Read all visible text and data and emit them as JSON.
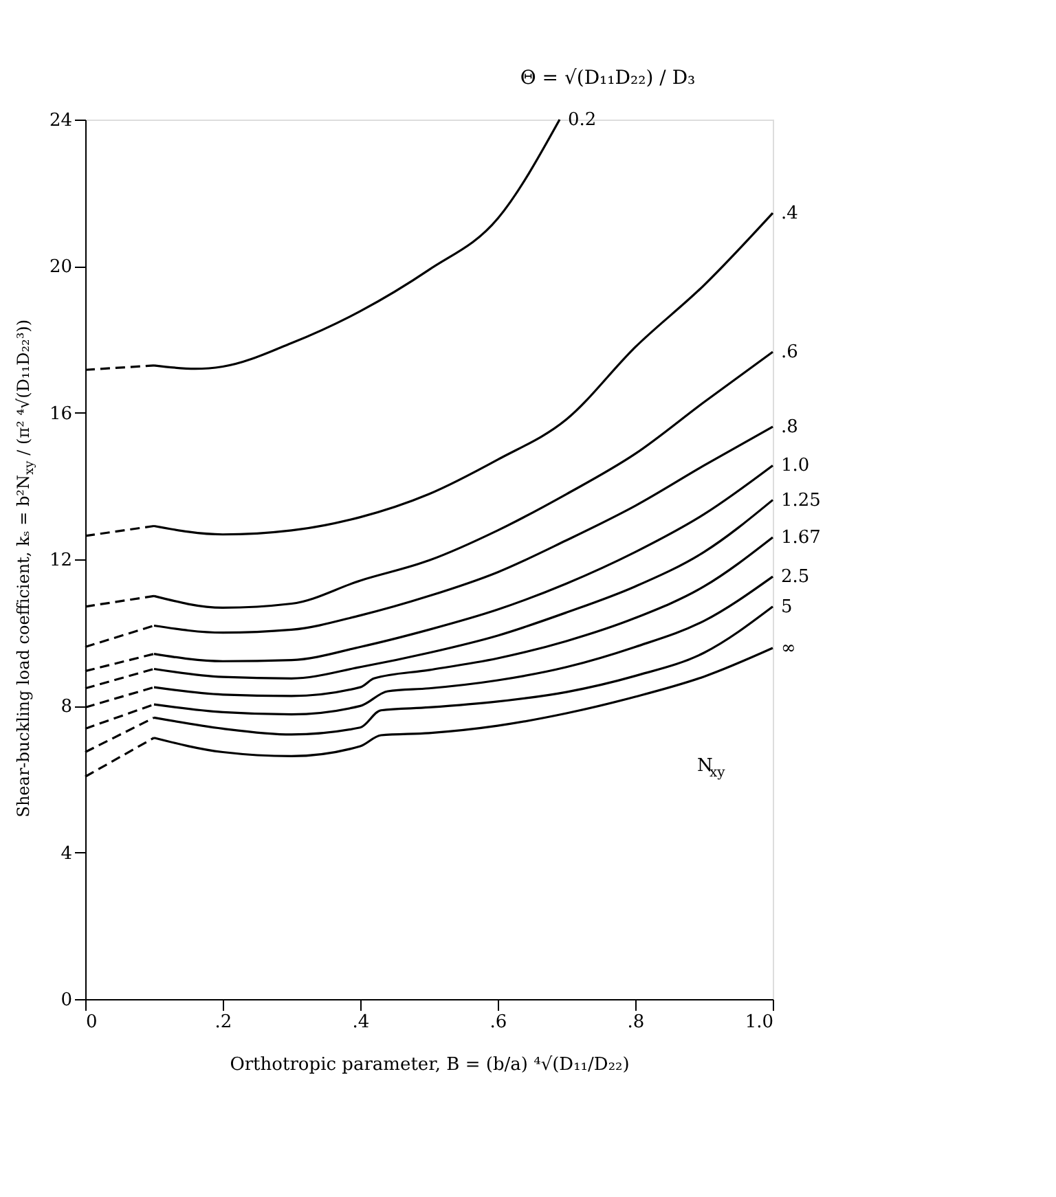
{
  "chart_data": {
    "type": "line",
    "xlabel": "Orthotropic parameter, B = (b/a) ⁴√(D₁₁/D₂₂)",
    "ylabel": "Shear-buckling load coefficient, kₛ = b²N$_{xy}$ / (π² ⁴√(D₁₁D₂₂³))",
    "legend_title": "Θ = √(D₁₁D₂₂) / D₃",
    "annotations": [
      "N$_{xy}$"
    ],
    "xlim": [
      0,
      1.0
    ],
    "ylim": [
      0,
      24
    ],
    "xticks": [
      0,
      {
        "value": 0.2,
        "label": ".2"
      },
      {
        "value": 0.4,
        "label": ".4"
      },
      {
        "value": 0.6,
        "label": ".6"
      },
      {
        "value": 0.8,
        "label": ".8"
      },
      {
        "value": 1.0,
        "label": "1.0"
      }
    ],
    "yticks": [
      0,
      4,
      8,
      12,
      16,
      20,
      24
    ],
    "grid": false,
    "marker": "none",
    "series": [
      {
        "color": "#000000",
        "line_style": "dashed",
        "x": [
          0,
          0.1
        ],
        "values": [
          17.17,
          17.29
        ]
      },
      {
        "name": "0.2",
        "color": "#000000",
        "line_style": "solid",
        "x": [
          0.1,
          0.16,
          0.2,
          0.3,
          0.4,
          0.5,
          0.6,
          0.69
        ],
        "values": [
          17.29,
          17.2,
          17.26,
          17.9,
          18.77,
          19.9,
          21.3,
          24
        ]
      },
      {
        "color": "#000000",
        "line_style": "dashed",
        "x": [
          0,
          0.1
        ],
        "values": [
          12.64,
          12.91
        ]
      },
      {
        "name": ".4",
        "color": "#000000",
        "line_style": "solid",
        "x": [
          0.1,
          0.2,
          0.3,
          0.4,
          0.5,
          0.6,
          0.7,
          0.8,
          0.9,
          1.0
        ],
        "values": [
          12.91,
          12.68,
          12.79,
          13.15,
          13.78,
          14.72,
          15.82,
          17.79,
          19.48,
          21.45
        ]
      },
      {
        "color": "#000000",
        "line_style": "dashed",
        "x": [
          0,
          0.1
        ],
        "values": [
          10.71,
          11.0
        ]
      },
      {
        "name": ".6",
        "color": "#000000",
        "line_style": "solid",
        "x": [
          0.1,
          0.2,
          0.3,
          0.4,
          0.5,
          0.6,
          0.7,
          0.8,
          0.9,
          1.0
        ],
        "values": [
          11.0,
          10.68,
          10.79,
          11.42,
          11.97,
          12.79,
          13.78,
          14.88,
          16.29,
          17.66
        ]
      },
      {
        "color": "#000000",
        "line_style": "dashed",
        "x": [
          0,
          0.1
        ],
        "values": [
          9.61,
          10.19
        ]
      },
      {
        "name": ".8",
        "color": "#000000",
        "line_style": "solid",
        "x": [
          0.1,
          0.2,
          0.3,
          0.4,
          0.5,
          0.6,
          0.7,
          0.8,
          0.9,
          1.0
        ],
        "values": [
          10.19,
          10.0,
          10.08,
          10.47,
          11.0,
          11.65,
          12.52,
          13.46,
          14.56,
          15.62
        ]
      },
      {
        "color": "#000000",
        "line_style": "dashed",
        "x": [
          0,
          0.1
        ],
        "values": [
          8.95,
          9.42
        ]
      },
      {
        "name": "1.0",
        "color": "#000000",
        "line_style": "solid",
        "x": [
          0.1,
          0.2,
          0.3,
          0.4,
          0.5,
          0.6,
          0.7,
          0.8,
          0.9,
          1.0
        ],
        "values": [
          9.42,
          9.22,
          9.25,
          9.61,
          10.08,
          10.63,
          11.34,
          12.2,
          13.23,
          14.56
        ]
      },
      {
        "color": "#000000",
        "line_style": "dashed",
        "x": [
          0,
          0.1
        ],
        "values": [
          8.48,
          9.01
        ]
      },
      {
        "name": "1.25",
        "color": "#000000",
        "line_style": "solid",
        "x": [
          0.1,
          0.2,
          0.3,
          0.4,
          0.5,
          0.6,
          0.7,
          0.8,
          0.9,
          1.0
        ],
        "values": [
          9.01,
          8.79,
          8.75,
          9.06,
          9.45,
          9.92,
          10.55,
          11.26,
          12.2,
          13.62
        ]
      },
      {
        "color": "#000000",
        "line_style": "dashed",
        "x": [
          0,
          0.1
        ],
        "values": [
          7.96,
          8.51
        ]
      },
      {
        "name": "1.67",
        "color": "#000000",
        "line_style": "solid",
        "x": [
          0.1,
          0.2,
          0.3,
          0.4,
          0.42,
          0.5,
          0.6,
          0.7,
          0.8,
          0.9,
          1.0
        ],
        "values": [
          8.51,
          8.31,
          8.27,
          8.51,
          8.75,
          8.98,
          9.3,
          9.77,
          10.4,
          11.26,
          12.6
        ]
      },
      {
        "color": "#000000",
        "line_style": "dashed",
        "x": [
          0,
          0.1
        ],
        "values": [
          7.38,
          8.04
        ]
      },
      {
        "name": "2.5",
        "color": "#000000",
        "line_style": "solid",
        "x": [
          0.1,
          0.2,
          0.3,
          0.4,
          0.44,
          0.5,
          0.6,
          0.7,
          0.8,
          0.9,
          1.0
        ],
        "values": [
          8.04,
          7.83,
          7.77,
          8.0,
          8.4,
          8.48,
          8.7,
          9.06,
          9.61,
          10.32,
          11.53
        ]
      },
      {
        "color": "#000000",
        "line_style": "dashed",
        "x": [
          0,
          0.1
        ],
        "values": [
          6.74,
          7.68
        ]
      },
      {
        "name": "5",
        "color": "#000000",
        "line_style": "solid",
        "x": [
          0.1,
          0.2,
          0.3,
          0.4,
          0.43,
          0.5,
          0.6,
          0.7,
          0.8,
          0.9,
          1.0
        ],
        "values": [
          7.68,
          7.38,
          7.22,
          7.41,
          7.88,
          7.96,
          8.12,
          8.38,
          8.82,
          9.45,
          10.71
        ]
      },
      {
        "color": "#000000",
        "line_style": "dashed",
        "x": [
          0,
          0.1
        ],
        "values": [
          6.07,
          7.13
        ]
      },
      {
        "name": "∞",
        "color": "#000000",
        "line_style": "solid",
        "x": [
          0.1,
          0.2,
          0.3,
          0.4,
          0.43,
          0.5,
          0.6,
          0.7,
          0.8,
          0.9,
          1.0
        ],
        "values": [
          7.13,
          6.74,
          6.63,
          6.9,
          7.2,
          7.26,
          7.46,
          7.8,
          8.25,
          8.8,
          9.58
        ]
      }
    ]
  }
}
